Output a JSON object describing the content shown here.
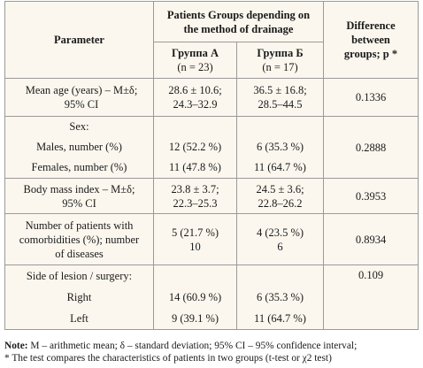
{
  "header": {
    "parameter": "Parameter",
    "groups_title": "Patients Groups depending on the method of drainage",
    "group_a_name": "Группа А",
    "group_a_n": "(n = 23)",
    "group_b_name": "Группа Б",
    "group_b_n": "(n = 17)",
    "difference": "Difference between groups; p *"
  },
  "rows": {
    "age": {
      "label_1": "Mean age (years) – M±δ;",
      "label_2": "95% CI",
      "a_1": "28.6 ± 10.6;",
      "a_2": "24.3–32.9",
      "b_1": "36.5 ± 16.8;",
      "b_2": "28.5–44.5",
      "p": "0.1336"
    },
    "sex": {
      "label": "Sex:",
      "males_label": "Males, number (%)",
      "males_a": "12 (52.2 %)",
      "males_b": "6 (35.3 %)",
      "females_label": "Females, number (%)",
      "females_a": "11 (47.8 %)",
      "females_b": "11 (64.7 %)",
      "p": "0.2888"
    },
    "bmi": {
      "label_1": "Body mass index – M±δ;",
      "label_2": "95% CI",
      "a_1": "23.8 ± 3.7;",
      "a_2": "22.3–25.3",
      "b_1": "24.5 ± 3.6;",
      "b_2": "22.8–26.2",
      "p": "0.3953"
    },
    "comorb": {
      "label_1": "Number of patients with",
      "label_2": "comorbidities (%); number",
      "label_3": "of diseases",
      "a_1": "5 (21.7 %)",
      "a_2": "10",
      "b_1": "4 (23.5 %)",
      "b_2": "6",
      "p": "0.8934"
    },
    "side": {
      "label": "Side of lesion / surgery:",
      "right_label": "Right",
      "right_a": "14 (60.9 %)",
      "right_b": "6 (35.3 %)",
      "left_label": "Left",
      "left_a": "9 (39.1 %)",
      "left_b": "11 (64.7 %)",
      "p": "0.109"
    }
  },
  "notes": {
    "note_label": "Note:",
    "note_text": " M – arithmetic mean; δ – standard deviation; 95% CI – 95% confidence interval;",
    "star_text": "* The test compares the characteristics of patients in two groups (t-test or χ2 test)"
  }
}
